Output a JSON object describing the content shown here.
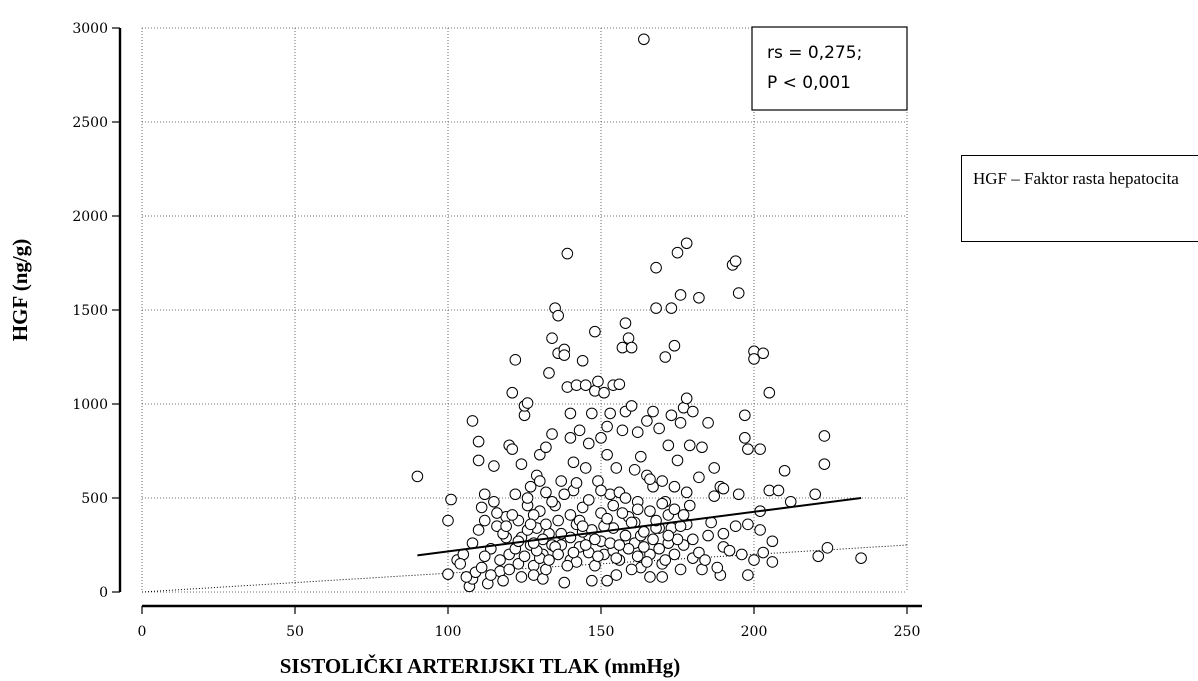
{
  "note_box": {
    "text": "HGF – Faktor rasta hepatocita"
  },
  "chart_data": {
    "type": "scatter",
    "title": "",
    "xlabel": "SISTOLIČKI ARTERIJSKI TLAK (mmHg)",
    "ylabel": "HGF (ng/g)",
    "xlim": [
      0,
      250
    ],
    "ylim": [
      0,
      3000
    ],
    "x_ticks": [
      "0",
      "50",
      "100",
      "150",
      "200",
      "250"
    ],
    "y_ticks": [
      "0",
      "500",
      "1000",
      "1500",
      "2000",
      "2500",
      "3000"
    ],
    "grid": true,
    "annotation": {
      "line1": "rs = 0,275;",
      "line2": "P < 0,001"
    },
    "regression_line": {
      "x": [
        90,
        235
      ],
      "y": [
        195,
        500
      ]
    },
    "reference_line": {
      "x": [
        0,
        250
      ],
      "y": [
        0,
        250
      ]
    },
    "points": [
      [
        90,
        615
      ],
      [
        100,
        380
      ],
      [
        101,
        492
      ],
      [
        100,
        95
      ],
      [
        103,
        170
      ],
      [
        105,
        200
      ],
      [
        107,
        30
      ],
      [
        108,
        910
      ],
      [
        108,
        70
      ],
      [
        109,
        105
      ],
      [
        110,
        800
      ],
      [
        110,
        700
      ],
      [
        111,
        450
      ],
      [
        111,
        130
      ],
      [
        112,
        380
      ],
      [
        112,
        520
      ],
      [
        113,
        45
      ],
      [
        114,
        230
      ],
      [
        115,
        670
      ],
      [
        115,
        480
      ],
      [
        116,
        350
      ],
      [
        117,
        170
      ],
      [
        117,
        110
      ],
      [
        118,
        60
      ],
      [
        119,
        400
      ],
      [
        119,
        290
      ],
      [
        120,
        780
      ],
      [
        120,
        200
      ],
      [
        121,
        760
      ],
      [
        121,
        1060
      ],
      [
        122,
        1235
      ],
      [
        122,
        520
      ],
      [
        123,
        150
      ],
      [
        123,
        380
      ],
      [
        124,
        680
      ],
      [
        124,
        290
      ],
      [
        125,
        940
      ],
      [
        125,
        990
      ],
      [
        126,
        1005
      ],
      [
        126,
        460
      ],
      [
        127,
        560
      ],
      [
        127,
        250
      ],
      [
        128,
        140
      ],
      [
        128,
        90
      ],
      [
        129,
        340
      ],
      [
        129,
        620
      ],
      [
        130,
        730
      ],
      [
        130,
        430
      ],
      [
        131,
        200
      ],
      [
        131,
        70
      ],
      [
        132,
        530
      ],
      [
        132,
        770
      ],
      [
        133,
        1165
      ],
      [
        133,
        310
      ],
      [
        134,
        1350
      ],
      [
        134,
        840
      ],
      [
        135,
        1510
      ],
      [
        135,
        460
      ],
      [
        136,
        1470
      ],
      [
        136,
        1270
      ],
      [
        137,
        250
      ],
      [
        137,
        590
      ],
      [
        138,
        1290
      ],
      [
        138,
        1260
      ],
      [
        139,
        1800
      ],
      [
        139,
        1090
      ],
      [
        140,
        950
      ],
      [
        140,
        820
      ],
      [
        140,
        170
      ],
      [
        141,
        690
      ],
      [
        141,
        540
      ],
      [
        142,
        1100
      ],
      [
        142,
        360
      ],
      [
        143,
        860
      ],
      [
        143,
        240
      ],
      [
        144,
        1230
      ],
      [
        144,
        450
      ],
      [
        145,
        1100
      ],
      [
        145,
        660
      ],
      [
        146,
        790
      ],
      [
        146,
        300
      ],
      [
        147,
        950
      ],
      [
        147,
        60
      ],
      [
        148,
        1385
      ],
      [
        148,
        1070
      ],
      [
        149,
        1120
      ],
      [
        149,
        590
      ],
      [
        150,
        820
      ],
      [
        150,
        420
      ],
      [
        151,
        1060
      ],
      [
        151,
        200
      ],
      [
        152,
        880
      ],
      [
        152,
        730
      ],
      [
        153,
        950
      ],
      [
        153,
        520
      ],
      [
        154,
        1100
      ],
      [
        154,
        340
      ],
      [
        155,
        660
      ],
      [
        155,
        90
      ],
      [
        156,
        1105
      ],
      [
        156,
        530
      ],
      [
        157,
        1300
      ],
      [
        157,
        860
      ],
      [
        158,
        1430
      ],
      [
        158,
        960
      ],
      [
        159,
        1350
      ],
      [
        159,
        400
      ],
      [
        160,
        1300
      ],
      [
        160,
        990
      ],
      [
        161,
        650
      ],
      [
        161,
        260
      ],
      [
        162,
        850
      ],
      [
        162,
        480
      ],
      [
        163,
        720
      ],
      [
        163,
        130
      ],
      [
        164,
        2940
      ],
      [
        165,
        910
      ],
      [
        165,
        620
      ],
      [
        166,
        430
      ],
      [
        166,
        200
      ],
      [
        167,
        960
      ],
      [
        167,
        560
      ],
      [
        168,
        1725
      ],
      [
        168,
        1510
      ],
      [
        169,
        870
      ],
      [
        169,
        340
      ],
      [
        170,
        590
      ],
      [
        170,
        80
      ],
      [
        171,
        1250
      ],
      [
        171,
        480
      ],
      [
        172,
        780
      ],
      [
        172,
        260
      ],
      [
        173,
        1510
      ],
      [
        173,
        940
      ],
      [
        174,
        1310
      ],
      [
        174,
        560
      ],
      [
        175,
        1805
      ],
      [
        175,
        700
      ],
      [
        176,
        1580
      ],
      [
        176,
        900
      ],
      [
        177,
        980
      ],
      [
        177,
        250
      ],
      [
        178,
        1855
      ],
      [
        178,
        1030
      ],
      [
        179,
        780
      ],
      [
        179,
        460
      ],
      [
        180,
        960
      ],
      [
        180,
        180
      ],
      [
        182,
        1565
      ],
      [
        182,
        610
      ],
      [
        183,
        770
      ],
      [
        183,
        120
      ],
      [
        185,
        900
      ],
      [
        185,
        300
      ],
      [
        187,
        660
      ],
      [
        187,
        510
      ],
      [
        189,
        560
      ],
      [
        189,
        90
      ],
      [
        190,
        550
      ],
      [
        190,
        240
      ],
      [
        193,
        1740
      ],
      [
        194,
        1760
      ],
      [
        195,
        520
      ],
      [
        195,
        1590
      ],
      [
        197,
        940
      ],
      [
        197,
        820
      ],
      [
        198,
        760
      ],
      [
        198,
        360
      ],
      [
        200,
        1280
      ],
      [
        200,
        1240
      ],
      [
        202,
        760
      ],
      [
        202,
        430
      ],
      [
        203,
        1270
      ],
      [
        203,
        210
      ],
      [
        205,
        1060
      ],
      [
        205,
        540
      ],
      [
        206,
        270
      ],
      [
        206,
        160
      ],
      [
        208,
        540
      ],
      [
        210,
        645
      ],
      [
        212,
        480
      ],
      [
        220,
        520
      ],
      [
        221,
        190
      ],
      [
        223,
        830
      ],
      [
        223,
        680
      ],
      [
        224,
        235
      ],
      [
        235,
        180
      ],
      [
        104,
        150
      ],
      [
        106,
        80
      ],
      [
        108,
        260
      ],
      [
        110,
        330
      ],
      [
        112,
        190
      ],
      [
        114,
        90
      ],
      [
        116,
        420
      ],
      [
        118,
        310
      ],
      [
        120,
        120
      ],
      [
        122,
        230
      ],
      [
        124,
        80
      ],
      [
        126,
        330
      ],
      [
        128,
        410
      ],
      [
        130,
        180
      ],
      [
        132,
        120
      ],
      [
        134,
        250
      ],
      [
        136,
        380
      ],
      [
        138,
        50
      ],
      [
        140,
        290
      ],
      [
        142,
        160
      ],
      [
        144,
        320
      ],
      [
        146,
        210
      ],
      [
        148,
        140
      ],
      [
        150,
        270
      ],
      [
        152,
        60
      ],
      [
        154,
        220
      ],
      [
        156,
        170
      ],
      [
        158,
        300
      ],
      [
        160,
        120
      ],
      [
        162,
        190
      ],
      [
        164,
        240
      ],
      [
        166,
        80
      ],
      [
        168,
        340
      ],
      [
        170,
        150
      ],
      [
        172,
        410
      ],
      [
        174,
        200
      ],
      [
        176,
        120
      ],
      [
        178,
        360
      ],
      [
        180,
        280
      ],
      [
        182,
        210
      ],
      [
        184,
        170
      ],
      [
        186,
        370
      ],
      [
        188,
        130
      ],
      [
        190,
        310
      ],
      [
        192,
        220
      ],
      [
        194,
        350
      ],
      [
        196,
        200
      ],
      [
        198,
        90
      ],
      [
        200,
        170
      ],
      [
        202,
        330
      ],
      [
        119,
        350
      ],
      [
        121,
        410
      ],
      [
        123,
        270
      ],
      [
        125,
        190
      ],
      [
        127,
        360
      ],
      [
        129,
        220
      ],
      [
        131,
        280
      ],
      [
        133,
        170
      ],
      [
        135,
        240
      ],
      [
        137,
        310
      ],
      [
        139,
        140
      ],
      [
        141,
        210
      ],
      [
        143,
        380
      ],
      [
        145,
        250
      ],
      [
        147,
        330
      ],
      [
        149,
        190
      ],
      [
        151,
        350
      ],
      [
        153,
        260
      ],
      [
        155,
        180
      ],
      [
        157,
        420
      ],
      [
        159,
        230
      ],
      [
        161,
        370
      ],
      [
        163,
        300
      ],
      [
        165,
        160
      ],
      [
        167,
        280
      ],
      [
        169,
        230
      ],
      [
        171,
        170
      ],
      [
        173,
        340
      ],
      [
        175,
        280
      ],
      [
        177,
        410
      ],
      [
        126,
        500
      ],
      [
        128,
        260
      ],
      [
        130,
        590
      ],
      [
        132,
        360
      ],
      [
        134,
        480
      ],
      [
        136,
        200
      ],
      [
        138,
        520
      ],
      [
        140,
        410
      ],
      [
        142,
        580
      ],
      [
        144,
        350
      ],
      [
        146,
        490
      ],
      [
        148,
        280
      ],
      [
        150,
        540
      ],
      [
        152,
        390
      ],
      [
        154,
        460
      ],
      [
        156,
        250
      ],
      [
        158,
        500
      ],
      [
        160,
        370
      ],
      [
        162,
        440
      ],
      [
        164,
        320
      ],
      [
        166,
        600
      ],
      [
        168,
        380
      ],
      [
        170,
        470
      ],
      [
        172,
        300
      ],
      [
        174,
        440
      ],
      [
        176,
        350
      ],
      [
        178,
        530
      ]
    ]
  }
}
